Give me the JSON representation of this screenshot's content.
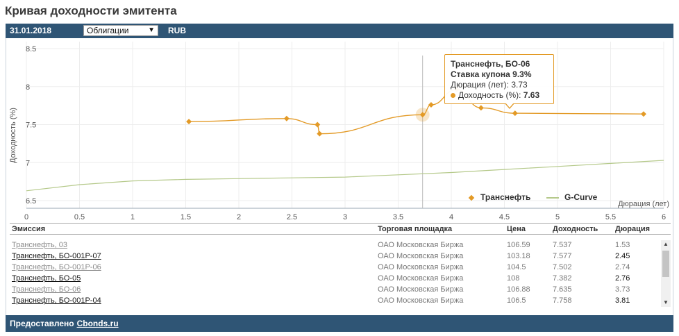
{
  "header": {
    "title": "Кривая доходности эмитента"
  },
  "toolbar": {
    "date": "31.01.2018",
    "bond_type": "Облигации",
    "currency": "RUB"
  },
  "tooltip": {
    "name": "Транснефть, БО-06",
    "coupon_label": "Ставка купона",
    "coupon_value": "9.3%",
    "duration_label": "Дюрация (лет)",
    "duration_value": "3.73",
    "yield_label": "Доходность (%)",
    "yield_value": "7.63"
  },
  "chart_data": {
    "type": "line",
    "xlabel": "Дюрация (лет)",
    "ylabel": "Доходность (%)",
    "xlim": [
      0,
      6
    ],
    "ylim": [
      6.4,
      8.5
    ],
    "x_ticks": [
      "0",
      "0.5",
      "1",
      "1.5",
      "2",
      "2.5",
      "3",
      "3.5",
      "4",
      "4.5",
      "5",
      "5.5",
      "6"
    ],
    "y_ticks": [
      "6.5",
      "7",
      "7.5",
      "8",
      "8.5"
    ],
    "legend_position": "bottom-right",
    "series": [
      {
        "name": "Транснефть",
        "color": "#e39a26",
        "points": [
          {
            "x": 1.53,
            "y": 7.54
          },
          {
            "x": 2.45,
            "y": 7.58
          },
          {
            "x": 2.74,
            "y": 7.5
          },
          {
            "x": 2.76,
            "y": 7.38
          },
          {
            "x": 3.73,
            "y": 7.63
          },
          {
            "x": 3.81,
            "y": 7.76
          },
          {
            "x": 4.05,
            "y": 7.96
          },
          {
            "x": 4.28,
            "y": 7.72
          },
          {
            "x": 4.6,
            "y": 7.65
          },
          {
            "x": 5.81,
            "y": 7.64
          }
        ]
      },
      {
        "name": "G-Curve",
        "color": "#b5c98a",
        "points": [
          {
            "x": 0.0,
            "y": 6.63
          },
          {
            "x": 0.5,
            "y": 6.71
          },
          {
            "x": 1.0,
            "y": 6.76
          },
          {
            "x": 1.5,
            "y": 6.78
          },
          {
            "x": 2.0,
            "y": 6.79
          },
          {
            "x": 2.5,
            "y": 6.8
          },
          {
            "x": 3.0,
            "y": 6.81
          },
          {
            "x": 3.5,
            "y": 6.84
          },
          {
            "x": 4.0,
            "y": 6.87
          },
          {
            "x": 4.5,
            "y": 6.91
          },
          {
            "x": 5.0,
            "y": 6.95
          },
          {
            "x": 5.5,
            "y": 6.99
          },
          {
            "x": 6.0,
            "y": 7.03
          }
        ]
      }
    ],
    "highlight_x": 3.73
  },
  "table": {
    "headers": [
      "Эмиссия",
      "Торговая площадка",
      "Цена",
      "Доходность",
      "Дюрация"
    ],
    "rows": [
      {
        "name": "Транснефть, 03",
        "exchange": "ОАО Московская Биржа",
        "price": "106.59",
        "yield": "7.537",
        "duration": "1.53",
        "style": "dim"
      },
      {
        "name": "Транснефть, БО-001Р-07",
        "exchange": "ОАО Московская Биржа",
        "price": "103.18",
        "yield": "7.577",
        "duration": "2.45",
        "style": "dark"
      },
      {
        "name": "Транснефть, БО-001Р-06",
        "exchange": "ОАО Московская Биржа",
        "price": "104.5",
        "yield": "7.502",
        "duration": "2.74",
        "style": "dim"
      },
      {
        "name": "Транснефть, БО-05",
        "exchange": "ОАО Московская Биржа",
        "price": "108",
        "yield": "7.382",
        "duration": "2.76",
        "style": "dark"
      },
      {
        "name": "Транснефть, БО-06",
        "exchange": "ОАО Московская Биржа",
        "price": "106.88",
        "yield": "7.635",
        "duration": "3.73",
        "style": "dim"
      },
      {
        "name": "Транснефть, БО-001Р-04",
        "exchange": "ОАО Московская Биржа",
        "price": "106.5",
        "yield": "7.758",
        "duration": "3.81",
        "style": "dark"
      }
    ]
  },
  "footer": {
    "provided_by": "Предоставлено",
    "link": "Cbonds.ru"
  }
}
